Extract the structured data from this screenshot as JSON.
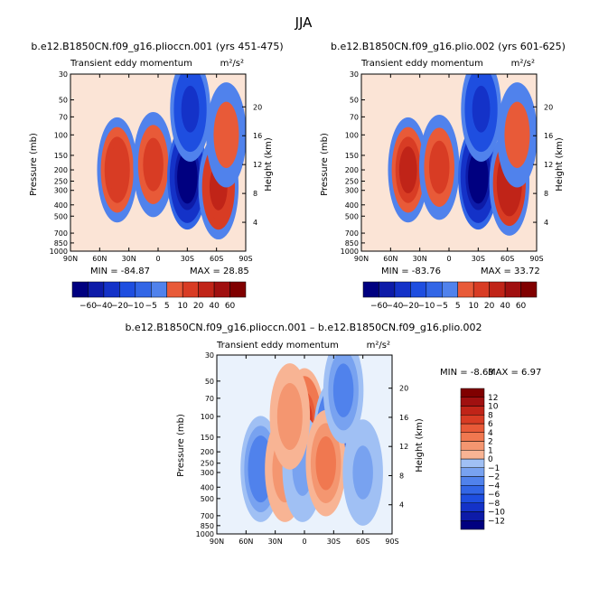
{
  "figure_title": "JJA",
  "colors": {
    "negative": [
      "#000080",
      "#0d1ba8",
      "#1432c8",
      "#1e4ee0",
      "#3266e6",
      "#5082ec",
      "#78a2f0",
      "#a0c0f4",
      "#c8dcf8",
      "#e4eefa"
    ],
    "positive": [
      "#fce6da",
      "#fbd0b8",
      "#f8b494",
      "#f49670",
      "#f07850",
      "#e85a38",
      "#d83c24",
      "#c02418",
      "#a01010",
      "#800000"
    ]
  },
  "chart_data": [
    {
      "type": "heatmap",
      "subtitle": "b.e12.B1850CN.f09_g16.plioccn.001 (yrs 451-475)",
      "title_left": "Transient eddy momentum",
      "units": "m²/s²",
      "xlabel": "",
      "ylabel": "Pressure (mb)",
      "ylabel_right": "Height (km)",
      "x_ticks": [
        "90N",
        "60N",
        "30N",
        "0",
        "30S",
        "60S",
        "90S"
      ],
      "y_ticks": [
        "30",
        "50",
        "70",
        "100",
        "150",
        "200",
        "250",
        "300",
        "400",
        "500",
        "700",
        "850",
        "1000"
      ],
      "height_ticks": [
        "20",
        "16",
        "12",
        "8",
        "4"
      ],
      "min_label": "MIN = -84.87",
      "max_label": "MAX = 28.85",
      "min": -84.87,
      "max": 28.85,
      "levels": [
        -60,
        -40,
        -20,
        -10,
        -5,
        5,
        10,
        20,
        40,
        60
      ],
      "features": [
        {
          "lat": 42,
          "p": 200,
          "value": 22
        },
        {
          "lat": 5,
          "p": 180,
          "value": 14
        },
        {
          "lat": -30,
          "p": 230,
          "value": -84.87
        },
        {
          "lat": -33,
          "p": 60,
          "value": -30
        },
        {
          "lat": -62,
          "p": 280,
          "value": 28.85
        },
        {
          "lat": -70,
          "p": 100,
          "value": 8
        }
      ]
    },
    {
      "type": "heatmap",
      "subtitle": "b.e12.B1850CN.f09_g16.plio.002 (yrs 601-625)",
      "title_left": "Transient eddy momentum",
      "units": "m²/s²",
      "xlabel": "",
      "ylabel": "Pressure (mb)",
      "ylabel_right": "Height (km)",
      "x_ticks": [
        "90N",
        "60N",
        "30N",
        "0",
        "30S",
        "60S",
        "90S"
      ],
      "y_ticks": [
        "30",
        "50",
        "70",
        "100",
        "150",
        "200",
        "250",
        "300",
        "400",
        "500",
        "700",
        "850",
        "1000"
      ],
      "height_ticks": [
        "20",
        "16",
        "12",
        "8",
        "4"
      ],
      "min_label": "MIN = -83.76",
      "max_label": "MAX = 33.72",
      "min": -83.76,
      "max": 33.72,
      "levels": [
        -60,
        -40,
        -20,
        -10,
        -5,
        5,
        10,
        20,
        40,
        60
      ],
      "features": [
        {
          "lat": 42,
          "p": 200,
          "value": 26
        },
        {
          "lat": 10,
          "p": 190,
          "value": 12
        },
        {
          "lat": -30,
          "p": 230,
          "value": -83.76
        },
        {
          "lat": -33,
          "p": 60,
          "value": -28
        },
        {
          "lat": -62,
          "p": 260,
          "value": 33.72
        },
        {
          "lat": -70,
          "p": 100,
          "value": 8
        }
      ]
    },
    {
      "type": "heatmap",
      "subtitle": "b.e12.B1850CN.f09_g16.plioccn.001 – b.e12.B1850CN.f09_g16.plio.002",
      "title_left": "Transient eddy momentum",
      "units": "m²/s²",
      "xlabel": "",
      "ylabel": "Pressure (mb)",
      "ylabel_right": "Height (km)",
      "x_ticks": [
        "90N",
        "60N",
        "30N",
        "0",
        "30S",
        "60S",
        "90S"
      ],
      "y_ticks": [
        "30",
        "50",
        "70",
        "100",
        "150",
        "200",
        "250",
        "300",
        "400",
        "500",
        "700",
        "850",
        "1000"
      ],
      "height_ticks": [
        "20",
        "16",
        "12",
        "8",
        "4"
      ],
      "min_label": "MIN = -8.63",
      "max_label": "MAX = 6.97",
      "min": -8.63,
      "max": 6.97,
      "levels": [
        -12,
        -10,
        -8,
        -6,
        -4,
        -2,
        -1,
        0,
        1,
        2,
        4,
        6,
        8,
        10,
        12
      ],
      "features": [
        {
          "lat": 45,
          "p": 280,
          "value": -4
        },
        {
          "lat": 20,
          "p": 280,
          "value": 1.5
        },
        {
          "lat": 0,
          "p": 110,
          "value": 6.97
        },
        {
          "lat": 2,
          "p": 280,
          "value": -2
        },
        {
          "lat": -30,
          "p": 140,
          "value": -8.63
        },
        {
          "lat": -22,
          "p": 250,
          "value": 3
        },
        {
          "lat": -40,
          "p": 60,
          "value": -3
        },
        {
          "lat": -60,
          "p": 300,
          "value": -2
        },
        {
          "lat": 15,
          "p": 100,
          "value": 1.5
        }
      ]
    }
  ]
}
